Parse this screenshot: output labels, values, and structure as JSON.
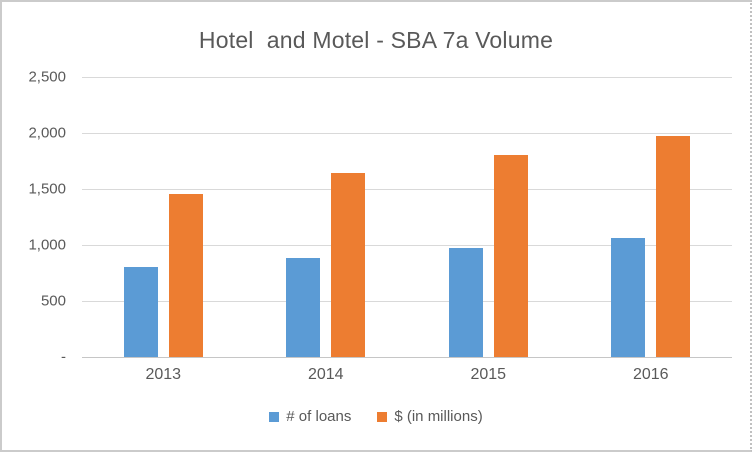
{
  "page": {
    "background": "#ffffff",
    "border_color": "#cbcbcb"
  },
  "chart_data": {
    "type": "bar",
    "title": "Hotel  and Motel - SBA 7a Volume",
    "categories": [
      "2013",
      "2014",
      "2015",
      "2016"
    ],
    "series": [
      {
        "name": "# of loans",
        "color": "#5B9BD5",
        "values": [
          805,
          885,
          970,
          1060
        ]
      },
      {
        "name": "$ (in millions)",
        "color": "#ED7D31",
        "values": [
          1455,
          1640,
          1805,
          1970
        ]
      }
    ],
    "xlabel": "",
    "ylabel": "",
    "ylim": [
      0,
      2500
    ],
    "ytick_interval": 500,
    "ytick_labels_top_to_bottom": [
      "2,500",
      "2,000",
      "1,500",
      "1,000",
      "500",
      "-"
    ],
    "grid": true,
    "legend_position": "bottom",
    "text_color": "#595959",
    "gridline_color": "#d9d9d9"
  }
}
